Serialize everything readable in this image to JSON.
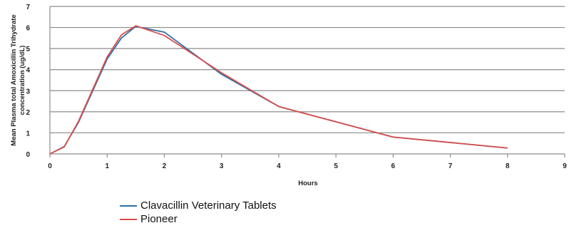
{
  "chart_data": {
    "type": "line",
    "title": "",
    "xlabel": "Hours",
    "ylabel_lines": [
      "Mean Plasma total Amoxicillin Trihydrate",
      "concentration (ug/dL)"
    ],
    "xlim": [
      0,
      9
    ],
    "ylim": [
      0,
      7
    ],
    "x_ticks": [
      "0",
      "1",
      "2",
      "3",
      "4",
      "5",
      "6",
      "7",
      "8",
      "9"
    ],
    "y_ticks": [
      "0",
      "1",
      "2",
      "3",
      "4",
      "5",
      "6",
      "7"
    ],
    "grid": "horizontal",
    "legend_position": "bottom-left",
    "series": [
      {
        "name": "Clavacillin Veterinary Tablets",
        "color": "#2e6ea6",
        "points": [
          [
            0,
            0
          ],
          [
            0.25,
            0.35
          ],
          [
            0.5,
            1.5
          ],
          [
            1,
            4.5
          ],
          [
            1.25,
            5.5
          ],
          [
            1.5,
            6.05
          ],
          [
            2,
            5.78
          ],
          [
            3,
            3.78
          ],
          [
            4,
            2.25
          ],
          [
            6,
            0.8
          ],
          [
            8,
            0.28
          ]
        ]
      },
      {
        "name": "Pioneer",
        "color": "#d9504c",
        "points": [
          [
            0,
            0
          ],
          [
            0.25,
            0.33
          ],
          [
            0.5,
            1.55
          ],
          [
            1,
            4.6
          ],
          [
            1.25,
            5.65
          ],
          [
            1.5,
            6.08
          ],
          [
            2,
            5.62
          ],
          [
            3,
            3.85
          ],
          [
            4,
            2.25
          ],
          [
            6,
            0.8
          ],
          [
            8,
            0.28
          ]
        ]
      }
    ]
  }
}
